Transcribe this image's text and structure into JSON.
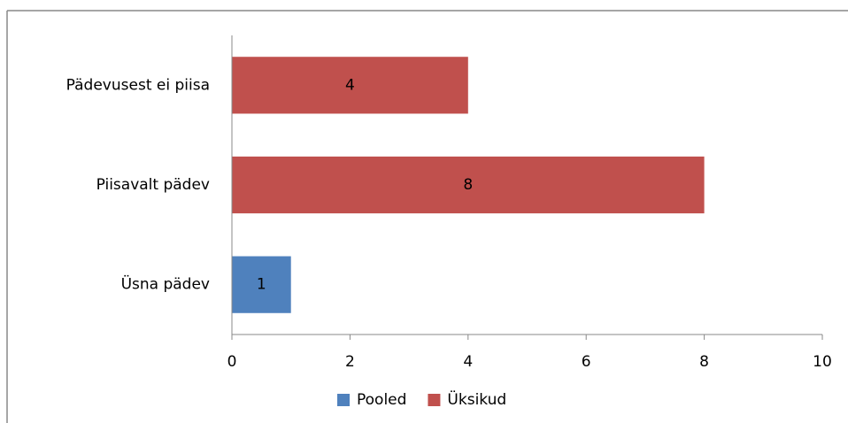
{
  "chart_data": {
    "type": "stacked_barh",
    "categories": [
      "Üsna pädev",
      "Piisavalt pädev",
      "Pädevusest ei piisa"
    ],
    "series": [
      {
        "name": "Pooled",
        "color": "#4f81bd",
        "values": [
          1,
          null,
          null
        ]
      },
      {
        "name": "Üksikud",
        "color": "#c0504d",
        "values": [
          null,
          8,
          4
        ]
      }
    ],
    "xlim": [
      0,
      10
    ],
    "xticks": [
      0,
      2,
      4,
      6,
      8,
      10
    ],
    "legend": "bottom"
  }
}
